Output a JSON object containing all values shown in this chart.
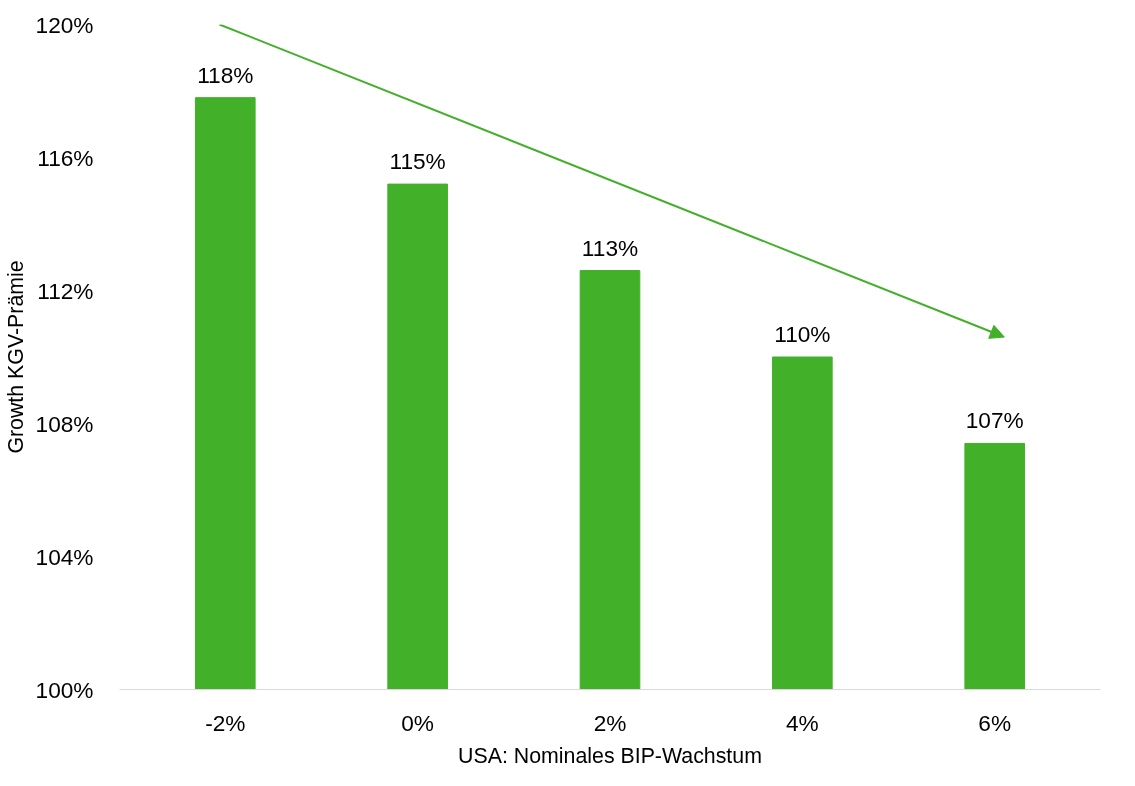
{
  "chart_data": {
    "type": "bar",
    "xlabel": "USA: Nominales BIP-Wachstum",
    "ylabel": "Growth KGV-Prämie",
    "categories": [
      "-2%",
      "0%",
      "2%",
      "4%",
      "6%"
    ],
    "values": [
      117.8,
      115.2,
      112.6,
      110.0,
      107.4
    ],
    "value_labels": [
      "118%",
      "115%",
      "113%",
      "110%",
      "107%"
    ],
    "color": "#43b02a",
    "ylim": [
      100,
      120
    ],
    "yticks": [
      {
        "value": 100,
        "label": "100%"
      },
      {
        "value": 104,
        "label": "104%"
      },
      {
        "value": 108,
        "label": "108%"
      },
      {
        "value": 112,
        "label": "112%"
      },
      {
        "value": 116,
        "label": "116%"
      },
      {
        "value": 120,
        "label": "120%"
      }
    ],
    "grid": false
  }
}
